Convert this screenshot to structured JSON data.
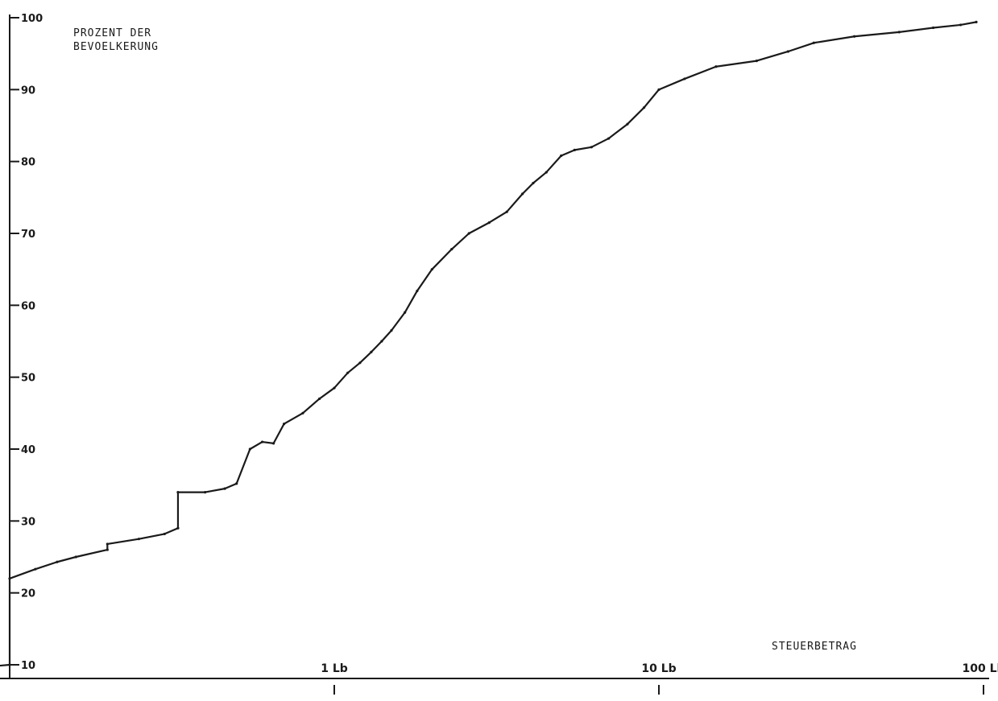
{
  "chart_data": {
    "type": "line",
    "title": "",
    "ylabel": [
      "PROZENT DER",
      "BEVOELKERUNG"
    ],
    "xlabel": "STEUERBETRAG",
    "x_scale": "log",
    "xlim": [
      0.025,
      100
    ],
    "ylim": [
      7.5,
      100
    ],
    "grid": false,
    "y_ticks": [
      {
        "value": 10,
        "label": "10"
      },
      {
        "value": 20,
        "label": "20"
      },
      {
        "value": 30,
        "label": "30"
      },
      {
        "value": 40,
        "label": "40"
      },
      {
        "value": 50,
        "label": "50"
      },
      {
        "value": 60,
        "label": "60"
      },
      {
        "value": 70,
        "label": "70"
      },
      {
        "value": 80,
        "label": "80"
      },
      {
        "value": 90,
        "label": "90"
      },
      {
        "value": 100,
        "label": "100"
      }
    ],
    "x_ticks": [
      {
        "value": 1,
        "label": "1 Lb"
      },
      {
        "value": 10,
        "label": "10 Lb"
      },
      {
        "value": 100,
        "label": "100 Lb"
      }
    ],
    "series": [
      {
        "color": "#1a1a1a",
        "x": [
          0.025,
          0.05,
          0.075,
          0.1,
          0.1,
          0.12,
          0.14,
          0.16,
          0.2,
          0.2,
          0.25,
          0.3,
          0.33,
          0.33,
          0.4,
          0.46,
          0.5,
          0.55,
          0.6,
          0.65,
          0.7,
          0.8,
          0.9,
          1.0,
          1.1,
          1.2,
          1.3,
          1.4,
          1.5,
          1.65,
          1.8,
          2.0,
          2.3,
          2.6,
          3.0,
          3.4,
          3.8,
          4.1,
          4.5,
          5.0,
          5.5,
          6.2,
          7.0,
          8.0,
          9.0,
          10.0,
          12.0,
          15.0,
          20.0,
          25.0,
          30.0,
          40.0,
          55.0,
          70.0,
          85.0,
          95.0
        ],
        "y": [
          8.5,
          8.8,
          9.5,
          10,
          22,
          23.3,
          24.3,
          25,
          26,
          26.8,
          27.5,
          28.2,
          29,
          34,
          34,
          34.5,
          35.2,
          40,
          41,
          40.8,
          43.5,
          45,
          47,
          48.5,
          50.6,
          52,
          53.5,
          55,
          56.5,
          59,
          62,
          65,
          67.8,
          70,
          71.5,
          73,
          75.5,
          77,
          78.5,
          80.8,
          81.6,
          82,
          83.2,
          85.2,
          87.5,
          90,
          91.5,
          93.2,
          94,
          95.3,
          96.5,
          97.4,
          98,
          98.6,
          99,
          99.4
        ]
      }
    ]
  }
}
